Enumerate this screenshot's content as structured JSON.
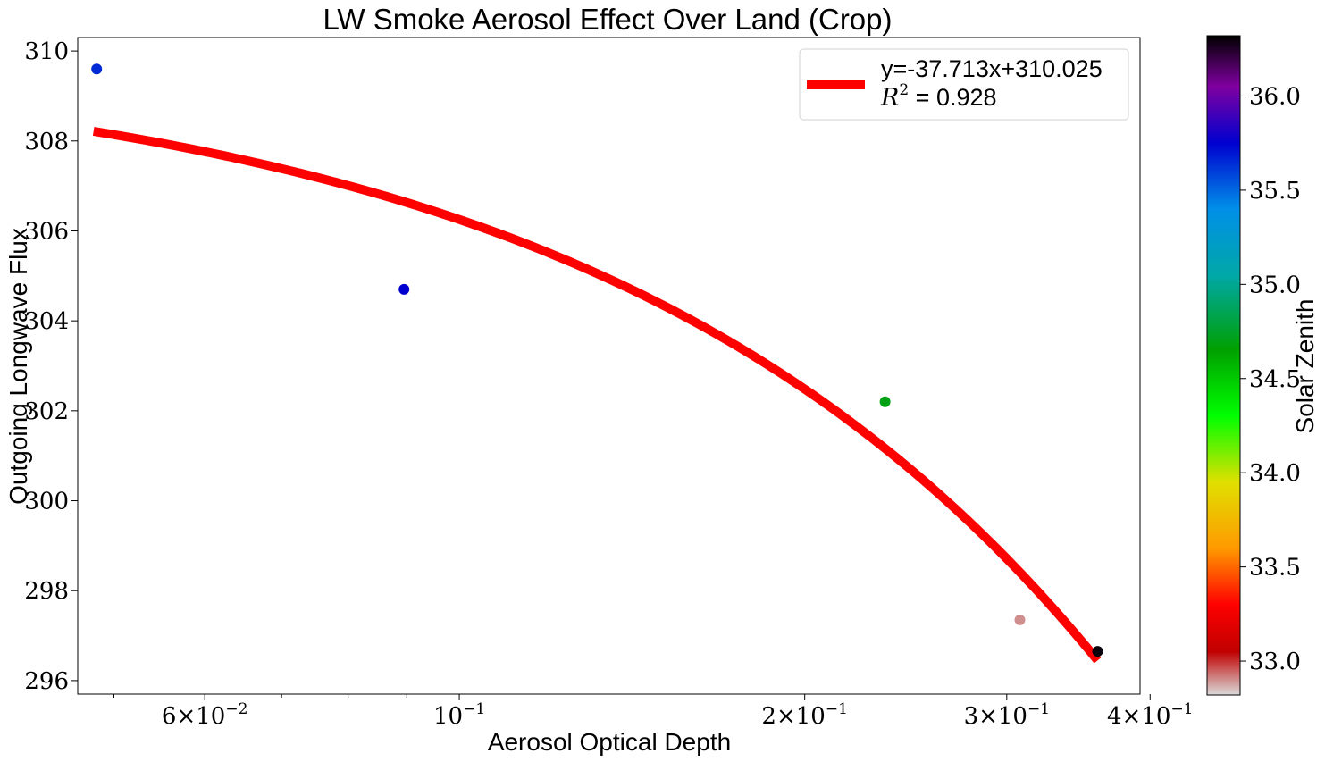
{
  "chart_data": {
    "type": "scatter",
    "title": "LW Smoke Aerosol Effect Over Land (Crop)",
    "xlabel": "Aerosol Optical Depth",
    "ylabel": "Outgoing Longwave Flux",
    "x_scale": "log",
    "xlim": [
      0.0465,
      0.392
    ],
    "ylim": [
      295.7,
      310.3
    ],
    "x_ticks": [
      {
        "value": 0.06,
        "base": "6×10",
        "exp": "−2"
      },
      {
        "value": 0.1,
        "base": "10",
        "exp": "−1"
      },
      {
        "value": 0.2,
        "base": "2×10",
        "exp": "−1"
      },
      {
        "value": 0.3,
        "base": "3×10",
        "exp": "−1"
      },
      {
        "value": 0.4,
        "base": "4×10",
        "exp": "−1"
      }
    ],
    "x_minor_ticks": [
      0.05,
      0.07,
      0.08,
      0.09
    ],
    "y_ticks": [
      {
        "value": 296,
        "label": "296"
      },
      {
        "value": 298,
        "label": "298"
      },
      {
        "value": 300,
        "label": "300"
      },
      {
        "value": 302,
        "label": "302"
      },
      {
        "value": 304,
        "label": "304"
      },
      {
        "value": 306,
        "label": "306"
      },
      {
        "value": 308,
        "label": "308"
      },
      {
        "value": 310,
        "label": "310"
      }
    ],
    "points": [
      {
        "x": 0.0483,
        "y": 309.6,
        "zenith": 35.65
      },
      {
        "x": 0.0895,
        "y": 304.7,
        "zenith": 35.75
      },
      {
        "x": 0.235,
        "y": 302.2,
        "zenith": 34.7
      },
      {
        "x": 0.308,
        "y": 297.35,
        "zenith": 32.9
      },
      {
        "x": 0.36,
        "y": 296.65,
        "zenith": 36.3
      }
    ],
    "fit": {
      "slope": -37.713,
      "intercept": 310.025,
      "x_start": 0.048,
      "x_end": 0.36,
      "color": "#ff0000"
    },
    "legend": {
      "placement": "top-right",
      "equation": "y=-37.713x+310.025",
      "r2_symbol": "R",
      "r2_sup": "2",
      "r2_text": " = 0.928"
    },
    "colorbar": {
      "label": "Solar Zenith",
      "min": 32.82,
      "max": 36.32,
      "ticks": [
        {
          "value": 33.0,
          "label": "33.0"
        },
        {
          "value": 33.5,
          "label": "33.5"
        },
        {
          "value": 34.0,
          "label": "34.0"
        },
        {
          "value": 34.5,
          "label": "34.5"
        },
        {
          "value": 35.0,
          "label": "35.0"
        },
        {
          "value": 35.5,
          "label": "35.5"
        },
        {
          "value": 36.0,
          "label": "36.0"
        }
      ],
      "stops": [
        {
          "v": 32.82,
          "c": "#dadada"
        },
        {
          "v": 33.05,
          "c": "#c00000"
        },
        {
          "v": 33.3,
          "c": "#ff0000"
        },
        {
          "v": 33.6,
          "c": "#ff9a00"
        },
        {
          "v": 33.95,
          "c": "#e0e000"
        },
        {
          "v": 34.3,
          "c": "#00ff00"
        },
        {
          "v": 34.65,
          "c": "#00a000"
        },
        {
          "v": 35.05,
          "c": "#00a8a8"
        },
        {
          "v": 35.4,
          "c": "#0090e8"
        },
        {
          "v": 35.75,
          "c": "#0000d0"
        },
        {
          "v": 36.05,
          "c": "#8000a0"
        },
        {
          "v": 36.32,
          "c": "#000000"
        }
      ]
    }
  }
}
